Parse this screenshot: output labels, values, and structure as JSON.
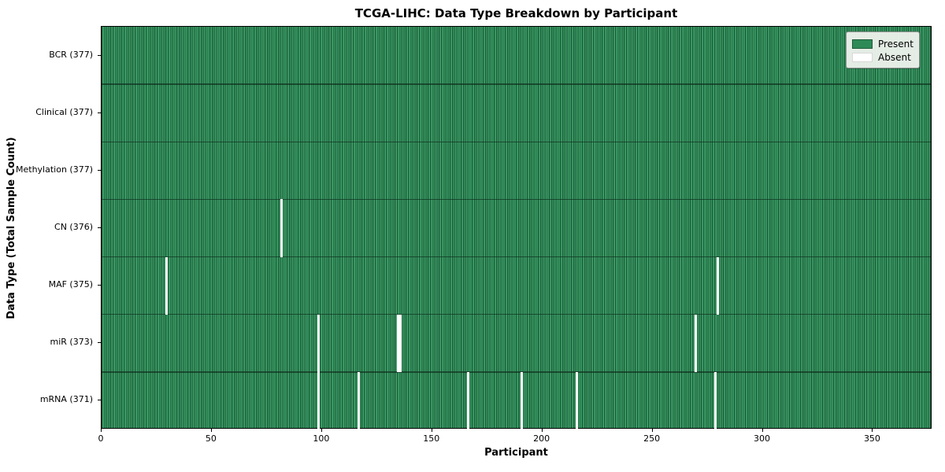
{
  "figure": {
    "background": "#ffffff"
  },
  "colors": {
    "present": "#2e8b57",
    "present_light": "#43a06d",
    "present_edge": "#1d5c39",
    "absent": "#ffffff",
    "axis": "#000000",
    "legend_bg": "#f2f5f0",
    "legend_border": "#8f8f8f"
  },
  "chart_data": {
    "type": "heatmap",
    "title": "TCGA-LIHC: Data Type Breakdown by Participant",
    "xlabel": "Participant",
    "ylabel": "Data Type (Total Sample Count)",
    "x_range": [
      0,
      377
    ],
    "x_ticks": [
      0,
      50,
      100,
      150,
      200,
      250,
      300,
      350
    ],
    "total_participants": 377,
    "grid": false,
    "legend_position": "upper right",
    "legend": [
      {
        "label": "Present",
        "color": "#2e8b57"
      },
      {
        "label": "Absent",
        "color": "#ffffff"
      }
    ],
    "rows": [
      {
        "data_type": "BCR",
        "label": "BCR (377)",
        "present_count": 377,
        "absent_participants": []
      },
      {
        "data_type": "Clinical",
        "label": "Clinical (377)",
        "present_count": 377,
        "absent_participants": []
      },
      {
        "data_type": "Methylation",
        "label": "Methylation (377)",
        "present_count": 377,
        "absent_participants": []
      },
      {
        "data_type": "CN",
        "label": "CN (376)",
        "present_count": 376,
        "absent_participants": [
          81
        ]
      },
      {
        "data_type": "MAF",
        "label": "MAF (375)",
        "present_count": 375,
        "absent_participants": [
          29,
          279
        ]
      },
      {
        "data_type": "miR",
        "label": "miR (373)",
        "present_count": 373,
        "absent_participants": [
          98,
          134,
          135,
          269
        ]
      },
      {
        "data_type": "mRNA",
        "label": "mRNA (371)",
        "present_count": 371,
        "absent_participants": [
          98,
          116,
          166,
          190,
          215,
          278
        ]
      }
    ]
  }
}
